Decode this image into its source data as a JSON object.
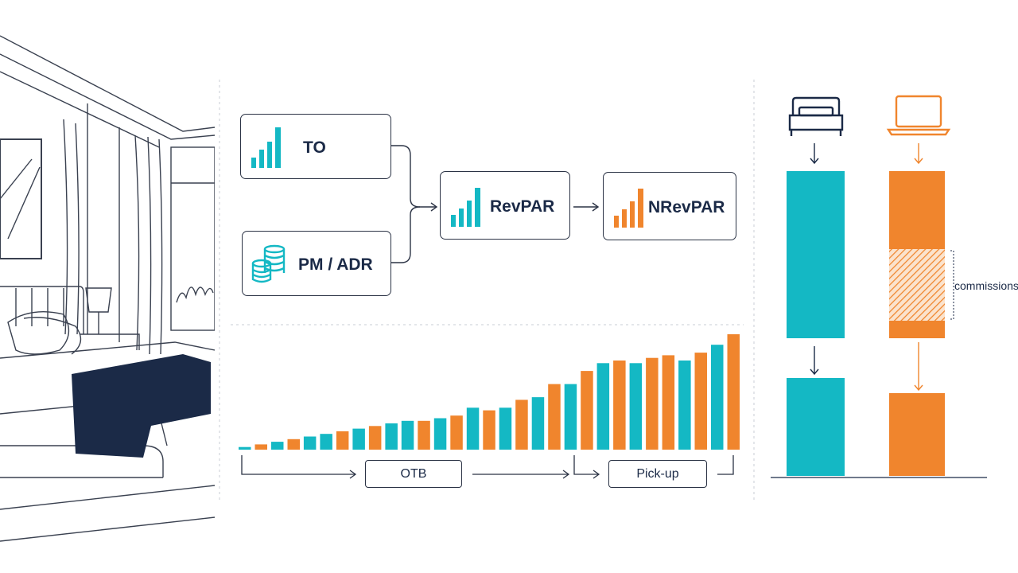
{
  "colors": {
    "teal": "#14b8c4",
    "orange": "#f0852d",
    "navy": "#1b2a47",
    "outline": "#2b3345"
  },
  "metrics": {
    "to": {
      "label": "TO",
      "icon": "bar-chart-icon"
    },
    "pm_adr": {
      "label": "PM / ADR",
      "icon": "coin-stack-icon"
    },
    "revpar": {
      "label": "RevPAR",
      "icon": "bar-chart-icon"
    },
    "nrevpar": {
      "label": "NRevPAR",
      "icon": "bar-chart-icon"
    }
  },
  "timeline": {
    "otb_label": "OTB",
    "pickup_label": "Pick-up"
  },
  "chart_data": {
    "type": "bar",
    "title": "",
    "xlabel": "",
    "ylabel": "",
    "values": [
      1,
      2,
      3,
      4,
      5,
      6,
      7,
      8,
      9,
      10,
      11,
      11,
      12,
      13,
      16,
      15,
      16,
      19,
      20,
      25,
      25,
      30,
      33,
      34,
      33,
      35,
      36,
      34,
      37,
      40,
      44
    ],
    "colors": [
      "teal",
      "orange",
      "teal",
      "orange",
      "teal",
      "teal",
      "orange",
      "teal",
      "orange",
      "teal",
      "teal",
      "orange",
      "teal",
      "orange",
      "teal",
      "orange",
      "teal",
      "orange",
      "teal",
      "orange",
      "teal",
      "orange",
      "teal",
      "orange",
      "teal",
      "orange",
      "orange",
      "teal",
      "orange",
      "teal",
      "orange"
    ],
    "legend": false,
    "grid": false
  },
  "comparison": {
    "direct_icon": "bed-icon",
    "ota_icon": "laptop-icon",
    "commissions_label": "commissions"
  }
}
